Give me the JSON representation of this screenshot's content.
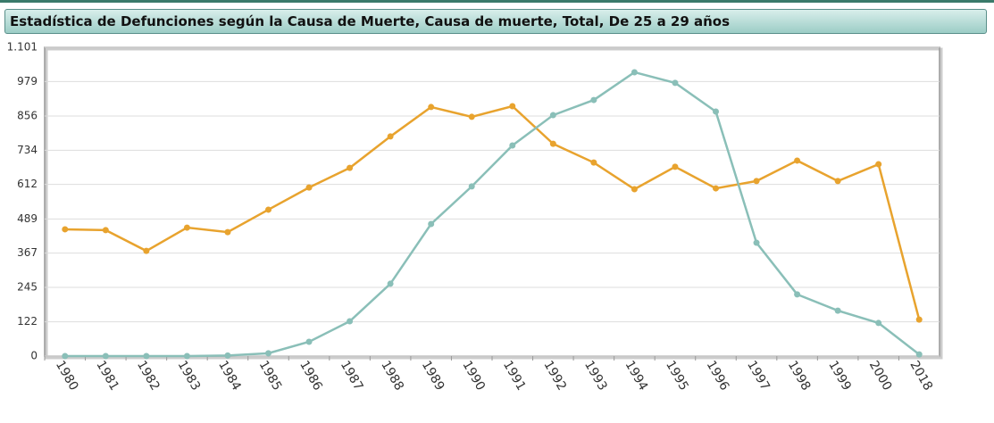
{
  "chart_data": {
    "type": "line",
    "title": "Estadística de Defunciones según la Causa de Muerte, Causa de muerte, Total, De 25 a 29 años",
    "categories": [
      "1980",
      "1981",
      "1982",
      "1983",
      "1984",
      "1985",
      "1986",
      "1987",
      "1988",
      "1989",
      "1990",
      "1991",
      "1992",
      "1993",
      "1994",
      "1995",
      "1996",
      "1997",
      "1998",
      "1999",
      "2000",
      "2018"
    ],
    "series": [
      {
        "color": "#e8a32e",
        "values": [
          452,
          449,
          375,
          458,
          442,
          522,
          601,
          671,
          783,
          888,
          853,
          891,
          757,
          690,
          595,
          675,
          598,
          624,
          697,
          624,
          684,
          130
        ]
      },
      {
        "color": "#8abfb8",
        "values": [
          0,
          0,
          0,
          0,
          2,
          10,
          51,
          124,
          258,
          471,
          605,
          751,
          859,
          913,
          1012,
          974,
          872,
          404,
          220,
          162,
          118,
          6
        ]
      }
    ],
    "ylim": [
      0,
      1101
    ],
    "yticks": [
      0,
      122,
      245,
      367,
      489,
      612,
      734,
      856,
      979,
      {
        "value": 1101,
        "label": "1.101"
      }
    ],
    "grid": true
  }
}
